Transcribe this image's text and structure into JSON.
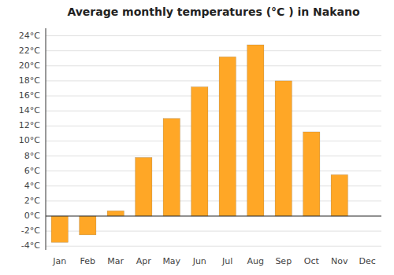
{
  "chart_data": {
    "type": "bar",
    "title": "Average monthly temperatures (°C ) in Nakano",
    "categories": [
      "Jan",
      "Feb",
      "Mar",
      "Apr",
      "May",
      "Jun",
      "Jul",
      "Aug",
      "Sep",
      "Oct",
      "Nov",
      "Dec"
    ],
    "values": [
      -3.5,
      -2.5,
      0.7,
      7.8,
      13.0,
      17.2,
      21.2,
      22.8,
      18.0,
      11.2,
      5.5,
      0.0
    ],
    "color": "#FFA726",
    "ylim": [
      -4.5,
      25
    ],
    "yticks": [
      {
        "value": -4,
        "label": "-4°C"
      },
      {
        "value": -2,
        "label": "-2°C"
      },
      {
        "value": 0,
        "label": "0°C"
      },
      {
        "value": 2,
        "label": "2°C"
      },
      {
        "value": 4,
        "label": "4°C"
      },
      {
        "value": 6,
        "label": "6°C"
      },
      {
        "value": 8,
        "label": "8°C"
      },
      {
        "value": 10,
        "label": "10°C"
      },
      {
        "value": 12,
        "label": "12°C"
      },
      {
        "value": 14,
        "label": "14°C"
      },
      {
        "value": 16,
        "label": "16°C"
      },
      {
        "value": 18,
        "label": "18°C"
      },
      {
        "value": 20,
        "label": "20°C"
      },
      {
        "value": 22,
        "label": "22°C"
      },
      {
        "value": 24,
        "label": "24°C"
      }
    ],
    "grid": true
  }
}
